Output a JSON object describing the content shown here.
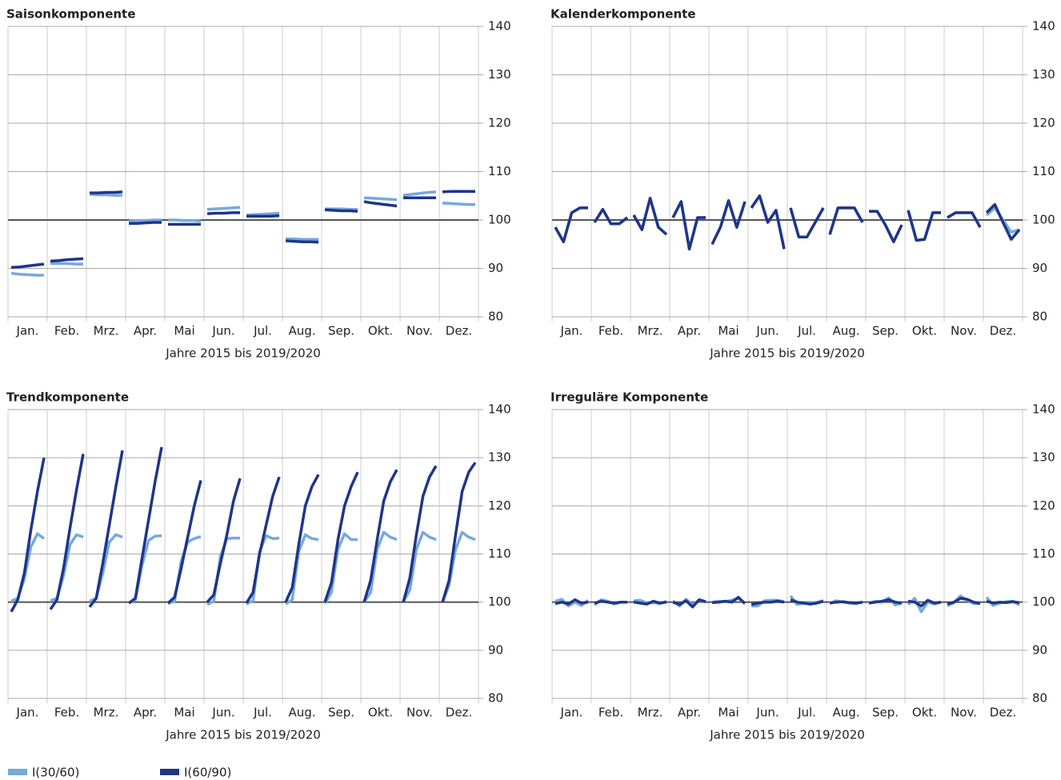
{
  "chart_data": [
    {
      "type": "line",
      "title": "Saisonkomponente",
      "xlabel": "Jahre 2015 bis 2019/2020",
      "categories": [
        "Jan.",
        "Feb.",
        "Mrz.",
        "Apr.",
        "Mai",
        "Jun.",
        "Jul.",
        "Aug.",
        "Sep.",
        "Okt.",
        "Nov.",
        "Dez."
      ],
      "ylim": [
        80,
        140
      ],
      "yticks": [
        80,
        90,
        100,
        110,
        120,
        130,
        140
      ],
      "reference_line": 100,
      "grid": true,
      "series": [
        {
          "values": [
            [
              89,
              88.8,
              88.7,
              88.6,
              88.6
            ],
            [
              91,
              91,
              91,
              90.9,
              90.9
            ],
            [
              105.3,
              105.2,
              105.2,
              105.1,
              105.1
            ],
            [
              99.8,
              99.9,
              99.9,
              100,
              100
            ],
            [
              100,
              100,
              99.9,
              99.9,
              99.8
            ],
            [
              102.2,
              102.3,
              102.4,
              102.5,
              102.6
            ],
            [
              101,
              101.1,
              101.2,
              101.3,
              101.4
            ],
            [
              96.1,
              96.1,
              96,
              96,
              96
            ],
            [
              102.3,
              102.3,
              102.3,
              102.2,
              102.2
            ],
            [
              104.6,
              104.5,
              104.4,
              104.3,
              104.2
            ],
            [
              105.1,
              105.3,
              105.5,
              105.7,
              105.8
            ],
            [
              103.5,
              103.4,
              103.3,
              103.2,
              103.2
            ]
          ]
        },
        {
          "values": [
            [
              90.2,
              90.3,
              90.5,
              90.7,
              90.9
            ],
            [
              91.5,
              91.6,
              91.8,
              91.9,
              92
            ],
            [
              105.6,
              105.6,
              105.7,
              105.7,
              105.8
            ],
            [
              99.3,
              99.3,
              99.4,
              99.5,
              99.5
            ],
            [
              99.1,
              99.1,
              99.1,
              99.1,
              99.1
            ],
            [
              101.3,
              101.4,
              101.4,
              101.5,
              101.5
            ],
            [
              100.8,
              100.8,
              100.8,
              100.8,
              100.9
            ],
            [
              95.7,
              95.6,
              95.5,
              95.5,
              95.4
            ],
            [
              102.1,
              102,
              101.9,
              101.9,
              101.8
            ],
            [
              103.8,
              103.5,
              103.3,
              103.1,
              102.9
            ],
            [
              104.6,
              104.6,
              104.6,
              104.6,
              104.6
            ],
            [
              105.8,
              105.9,
              105.9,
              105.9,
              105.9
            ]
          ]
        }
      ]
    },
    {
      "type": "line",
      "title": "Kalenderkomponente",
      "xlabel": "Jahre 2015 bis 2019/2020",
      "categories": [
        "Jan.",
        "Feb.",
        "Mrz.",
        "Apr.",
        "Mai",
        "Jun.",
        "Jul.",
        "Aug.",
        "Sep.",
        "Okt.",
        "Nov.",
        "Dez."
      ],
      "ylim": [
        80,
        140
      ],
      "yticks": [
        80,
        90,
        100,
        110,
        120,
        130,
        140
      ],
      "reference_line": 100,
      "grid": true,
      "series": [
        {
          "values": [
            [
              98.5,
              95.5,
              101.5,
              102.5,
              102.5
            ],
            [
              99.5,
              102.2,
              99.2,
              99.2,
              100.5
            ],
            [
              101,
              98,
              104.5,
              98.5,
              97
            ],
            [
              100.5,
              103.8,
              94,
              100.5,
              100.5
            ],
            [
              95,
              98.5,
              104,
              98.5,
              103.8
            ],
            [
              102.5,
              105,
              99.5,
              102,
              94
            ],
            [
              102.5,
              96.5,
              96.5,
              99.5,
              102.5
            ],
            [
              97,
              102.5,
              102.5,
              102.5,
              99.5
            ],
            [
              101.8,
              101.8,
              99,
              95.5,
              99
            ],
            [
              102,
              95.8,
              96,
              101.5,
              101.5
            ],
            [
              100.5,
              101.5,
              101.5,
              101.5,
              98.5
            ],
            [
              101,
              102.5,
              100,
              97.5,
              98
            ]
          ]
        },
        {
          "values": [
            [
              98.5,
              95.5,
              101.5,
              102.5,
              102.5
            ],
            [
              99.5,
              102.2,
              99.2,
              99.2,
              100.5
            ],
            [
              101,
              98,
              104.5,
              98.5,
              97
            ],
            [
              100.5,
              103.8,
              94,
              100.5,
              100.5
            ],
            [
              95,
              98.5,
              104,
              98.5,
              103.8
            ],
            [
              102.5,
              105,
              99.5,
              102,
              94
            ],
            [
              102.5,
              96.5,
              96.5,
              99.5,
              102.5
            ],
            [
              97,
              102.5,
              102.5,
              102.5,
              99.5
            ],
            [
              101.8,
              101.8,
              99,
              95.5,
              99
            ],
            [
              102,
              95.8,
              96,
              101.5,
              101.5
            ],
            [
              100.5,
              101.5,
              101.5,
              101.5,
              98.5
            ],
            [
              101.5,
              103.2,
              99.5,
              96,
              98
            ]
          ]
        }
      ]
    },
    {
      "type": "line",
      "title": "Trendkomponente",
      "xlabel": "Jahre 2015 bis 2019/2020",
      "categories": [
        "Jan.",
        "Feb.",
        "Mrz.",
        "Apr.",
        "Mai",
        "Jun.",
        "Jul.",
        "Aug.",
        "Sep.",
        "Okt.",
        "Nov.",
        "Dez."
      ],
      "ylim": [
        80,
        140
      ],
      "yticks": [
        80,
        90,
        100,
        110,
        120,
        130,
        140
      ],
      "reference_line": 100,
      "grid": true,
      "series": [
        {
          "values": [
            [
              100.2,
              100.8,
              104.8,
              111.5,
              114.2,
              113.2
            ],
            [
              100.3,
              100.8,
              105.5,
              112,
              114,
              113.5
            ],
            [
              100.2,
              100.8,
              106,
              112.5,
              114,
              113.5
            ],
            [
              99.8,
              100.5,
              107.5,
              112.8,
              113.7,
              113.8
            ],
            [
              99.7,
              100.2,
              108.5,
              112.5,
              113.2,
              113.6
            ],
            [
              99.5,
              100.2,
              109.5,
              113.2,
              113.3,
              113.3
            ],
            [
              99.6,
              100.3,
              110.5,
              113.8,
              113.2,
              113.3
            ],
            [
              99.6,
              100.5,
              110.5,
              114,
              113.2,
              113
            ],
            [
              99.7,
              102,
              111,
              114.2,
              113,
              113
            ],
            [
              100,
              102,
              111,
              114.5,
              113.5,
              113
            ],
            [
              100,
              102.5,
              111,
              114.5,
              113.5,
              113
            ],
            [
              100,
              103.5,
              111,
              114.5,
              113.5,
              113
            ]
          ]
        },
        {
          "values": [
            [
              98,
              100.5,
              106,
              115,
              123,
              130
            ],
            [
              98.5,
              100.5,
              107,
              115.5,
              123.5,
              130.8
            ],
            [
              99,
              100.8,
              108,
              116,
              124,
              131.5
            ],
            [
              99.8,
              100.8,
              109,
              117,
              125,
              132.2
            ],
            [
              99.8,
              101,
              107,
              113.5,
              120,
              125.3
            ],
            [
              100,
              101.5,
              108,
              114,
              121,
              125.7
            ],
            [
              99.8,
              102,
              110,
              116,
              122,
              126
            ],
            [
              100,
              103,
              112,
              120,
              124,
              126.5
            ],
            [
              100,
              104,
              113,
              120,
              124,
              127
            ],
            [
              100,
              104.5,
              113,
              121,
              125,
              127.5
            ],
            [
              100,
              105,
              114,
              122,
              126,
              128.3
            ],
            [
              100,
              104.5,
              114,
              123,
              127,
              129
            ]
          ]
        }
      ]
    },
    {
      "type": "line",
      "title": "Irreguläre Komponente",
      "xlabel": "Jahre 2015 bis 2019/2020",
      "categories": [
        "Jan.",
        "Feb.",
        "Mrz.",
        "Apr.",
        "Mai",
        "Jun.",
        "Jul.",
        "Aug.",
        "Sep.",
        "Okt.",
        "Nov.",
        "Dez."
      ],
      "ylim": [
        80,
        140
      ],
      "yticks": [
        80,
        90,
        100,
        110,
        120,
        130,
        140
      ],
      "reference_line": 100,
      "grid": true,
      "series": [
        {
          "values": [
            [
              100.2,
              100.6,
              99.2,
              100,
              99.3,
              100.4
            ],
            [
              99.4,
              100.5,
              100.2,
              99.6,
              100,
              100
            ],
            [
              100.3,
              100.4,
              99.8,
              99.9,
              99.7,
              100.2
            ],
            [
              100.3,
              99.2,
              100.6,
              99.5,
              100.4,
              100
            ],
            [
              100,
              100.2,
              100.1,
              100.4,
              100.8,
              99.8
            ],
            [
              99.2,
              99.2,
              100.3,
              100.4,
              100.4,
              100.1
            ],
            [
              101.3,
              99.5,
              99.8,
              99.8,
              100,
              100.3
            ],
            [
              99.8,
              100.3,
              100,
              99.8,
              99.7,
              100
            ],
            [
              99.8,
              100.2,
              100,
              100.9,
              99.4,
              99.8
            ],
            [
              99.5,
              100.8,
              98,
              100,
              99.6,
              100
            ],
            [
              99.2,
              99.9,
              101.3,
              100.4,
              99.7,
              99.8
            ],
            [
              101,
              99.3,
              99.8,
              100.1,
              100.2,
              99.4
            ]
          ]
        },
        {
          "values": [
            [
              99.7,
              100,
              99.6,
              100.5,
              99.8,
              100
            ],
            [
              99.8,
              100.2,
              100,
              99.8,
              100,
              100
            ],
            [
              100,
              99.8,
              99.6,
              100.2,
              99.8,
              100
            ],
            [
              100,
              99.5,
              100.3,
              99,
              100.5,
              100.1
            ],
            [
              99.9,
              100,
              100.2,
              100,
              101,
              99.7
            ],
            [
              99.5,
              99.8,
              100,
              100,
              100.2,
              100
            ],
            [
              100.5,
              100,
              99.8,
              99.6,
              99.8,
              100.2
            ],
            [
              99.8,
              100,
              100.1,
              99.9,
              99.8,
              100
            ],
            [
              99.8,
              100,
              100.2,
              100.5,
              100,
              99.8
            ],
            [
              100.2,
              100,
              99.2,
              100.4,
              99.8,
              100
            ],
            [
              99.6,
              100,
              100.8,
              100.6,
              100,
              99.7
            ],
            [
              100.2,
              99.8,
              100,
              99.9,
              100.1,
              99.9
            ]
          ]
        }
      ]
    }
  ],
  "legend": [
    {
      "name": "I(30/60)",
      "color": "#76a9dd"
    },
    {
      "name": "I(60/90)",
      "color": "#1f3589"
    }
  ]
}
